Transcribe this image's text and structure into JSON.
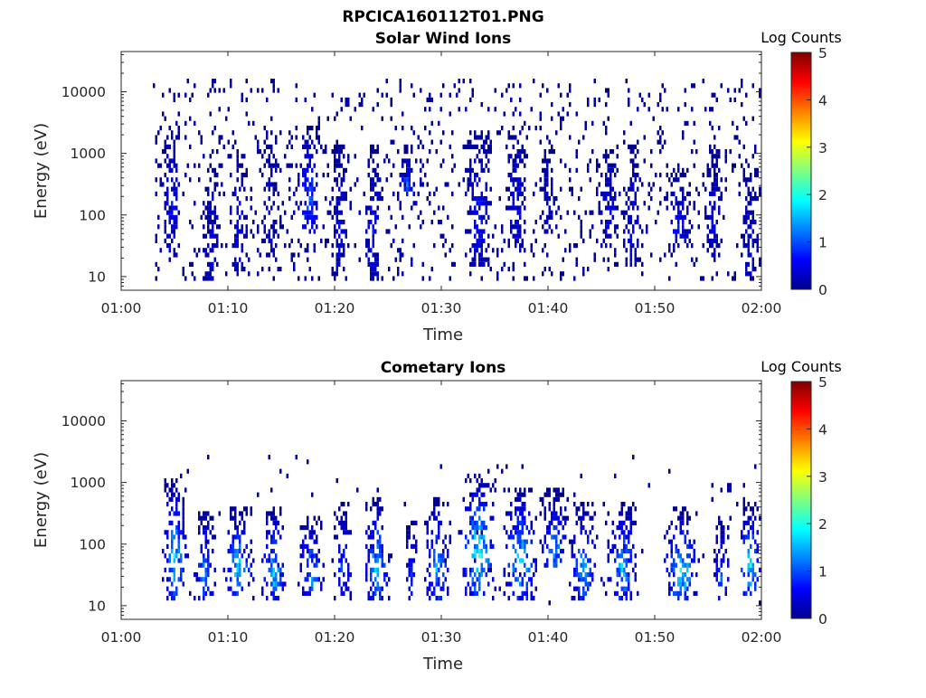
{
  "figure": {
    "title": "RPCICA160112T01.PNG"
  },
  "chart_data": [
    {
      "type": "heatmap",
      "title": "Solar Wind Ions",
      "xlabel": "Time",
      "ylabel": "Energy (eV)",
      "x_ticks": [
        "01:00",
        "01:10",
        "01:20",
        "01:30",
        "01:40",
        "01:50",
        "02:00"
      ],
      "x_range_minutes": [
        0,
        60
      ],
      "y_scale": "log",
      "y_ticks": [
        "10",
        "100",
        "1000",
        "10000"
      ],
      "y_range": [
        6,
        45000
      ],
      "colorbar": {
        "label": "Log Counts",
        "ticks": [
          "0",
          "1",
          "2",
          "3",
          "4",
          "5"
        ],
        "range": [
          0,
          5
        ],
        "colormap": "jet"
      },
      "bursts": [
        {
          "t": 4.8,
          "width": 0.8,
          "e_lo": 15,
          "e_hi": 3000,
          "peak": 0.8
        },
        {
          "t": 8.5,
          "width": 0.8,
          "e_lo": 8,
          "e_hi": 600,
          "peak": 0.5
        },
        {
          "t": 11.0,
          "width": 0.9,
          "e_lo": 10,
          "e_hi": 1500,
          "peak": 0.6
        },
        {
          "t": 14.0,
          "width": 0.8,
          "e_lo": 20,
          "e_hi": 2000,
          "peak": 0.5
        },
        {
          "t": 17.6,
          "width": 1.2,
          "e_lo": 50,
          "e_hi": 3000,
          "peak": 1.1
        },
        {
          "t": 20.5,
          "width": 0.8,
          "e_lo": 10,
          "e_hi": 1500,
          "peak": 0.6
        },
        {
          "t": 23.6,
          "width": 0.8,
          "e_lo": 8,
          "e_hi": 1500,
          "peak": 0.7
        },
        {
          "t": 26.8,
          "width": 0.8,
          "e_lo": 200,
          "e_hi": 1500,
          "peak": 1.2
        },
        {
          "t": 33.5,
          "width": 1.3,
          "e_lo": 15,
          "e_hi": 2500,
          "peak": 0.8
        },
        {
          "t": 37.1,
          "width": 1.0,
          "e_lo": 20,
          "e_hi": 3000,
          "peak": 0.6
        },
        {
          "t": 40.0,
          "width": 0.8,
          "e_lo": 50,
          "e_hi": 1500,
          "peak": 0.4
        },
        {
          "t": 45.6,
          "width": 1.0,
          "e_lo": 30,
          "e_hi": 1500,
          "peak": 0.6
        },
        {
          "t": 48.0,
          "width": 0.8,
          "e_lo": 15,
          "e_hi": 1500,
          "peak": 0.6
        },
        {
          "t": 52.2,
          "width": 1.3,
          "e_lo": 30,
          "e_hi": 600,
          "peak": 0.7
        },
        {
          "t": 55.5,
          "width": 0.8,
          "e_lo": 20,
          "e_hi": 1500,
          "peak": 0.5
        },
        {
          "t": 59.0,
          "width": 0.8,
          "e_lo": 8,
          "e_hi": 600,
          "peak": 0.5
        }
      ],
      "background": {
        "t_start": 3.0,
        "t_end": 60,
        "e_lo": 8,
        "e_hi": 15000,
        "density": 0.085,
        "peak": 0.25
      }
    },
    {
      "type": "heatmap",
      "title": "Cometary Ions",
      "xlabel": "Time",
      "ylabel": "Energy (eV)",
      "x_ticks": [
        "01:00",
        "01:10",
        "01:20",
        "01:30",
        "01:40",
        "01:50",
        "02:00"
      ],
      "x_range_minutes": [
        0,
        60
      ],
      "y_scale": "log",
      "y_ticks": [
        "10",
        "100",
        "1000",
        "10000"
      ],
      "y_range": [
        6,
        45000
      ],
      "colorbar": {
        "label": "Log Counts",
        "ticks": [
          "0",
          "1",
          "2",
          "3",
          "4",
          "5"
        ],
        "range": [
          0,
          5
        ],
        "colormap": "jet"
      },
      "bursts": [
        {
          "t": 5.0,
          "width": 1.2,
          "e_lo": 12,
          "e_hi": 1200,
          "peak": 1.7
        },
        {
          "t": 7.8,
          "width": 1.0,
          "e_lo": 12,
          "e_hi": 400,
          "peak": 1.3
        },
        {
          "t": 11.0,
          "width": 1.4,
          "e_lo": 15,
          "e_hi": 400,
          "peak": 1.8
        },
        {
          "t": 14.3,
          "width": 1.2,
          "e_lo": 12,
          "e_hi": 400,
          "peak": 1.7
        },
        {
          "t": 17.8,
          "width": 1.2,
          "e_lo": 15,
          "e_hi": 300,
          "peak": 1.5
        },
        {
          "t": 20.8,
          "width": 0.9,
          "e_lo": 12,
          "e_hi": 500,
          "peak": 1.0
        },
        {
          "t": 24.0,
          "width": 1.2,
          "e_lo": 12,
          "e_hi": 600,
          "peak": 1.7
        },
        {
          "t": 27.2,
          "width": 0.6,
          "e_lo": 12,
          "e_hi": 300,
          "peak": 0.8
        },
        {
          "t": 29.6,
          "width": 1.3,
          "e_lo": 12,
          "e_hi": 600,
          "peak": 1.5
        },
        {
          "t": 33.5,
          "width": 1.6,
          "e_lo": 15,
          "e_hi": 1500,
          "peak": 2.1
        },
        {
          "t": 37.4,
          "width": 1.6,
          "e_lo": 12,
          "e_hi": 800,
          "peak": 1.8
        },
        {
          "t": 40.6,
          "width": 1.3,
          "e_lo": 40,
          "e_hi": 800,
          "peak": 1.5
        },
        {
          "t": 43.3,
          "width": 1.3,
          "e_lo": 12,
          "e_hi": 500,
          "peak": 1.5
        },
        {
          "t": 47.0,
          "width": 1.5,
          "e_lo": 12,
          "e_hi": 500,
          "peak": 1.6
        },
        {
          "t": 52.5,
          "width": 1.6,
          "e_lo": 12,
          "e_hi": 400,
          "peak": 2.0
        },
        {
          "t": 56.3,
          "width": 0.8,
          "e_lo": 12,
          "e_hi": 300,
          "peak": 1.1
        },
        {
          "t": 59.0,
          "width": 1.3,
          "e_lo": 15,
          "e_hi": 500,
          "peak": 1.8
        }
      ],
      "background": {
        "t_start": 4.0,
        "t_end": 60,
        "e_lo": 10,
        "e_hi": 3000,
        "density": 0.012,
        "peak": 0.2
      }
    }
  ]
}
